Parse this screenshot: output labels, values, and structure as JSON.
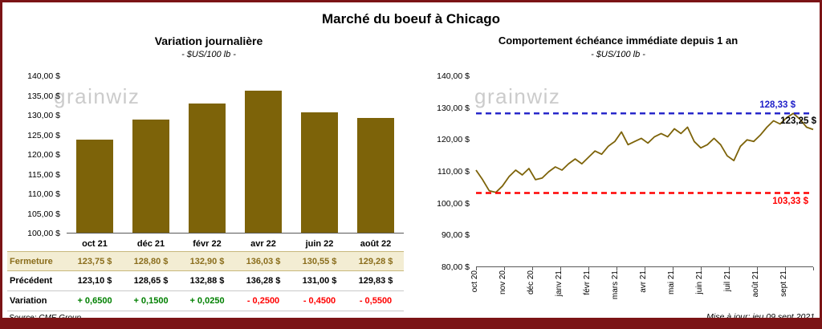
{
  "page": {
    "title": "Marché du boeuf à Chicago",
    "watermark": "grainwiz",
    "source": "Source: CME Group",
    "updated": "Mise à jour: jeu 09 sept 2021"
  },
  "colors": {
    "frame_red": "#7b1416",
    "series_gold": "#7d6309",
    "close_row_bg": "#f3edd3",
    "close_row_text": "#8a6d1c",
    "positive_green": "#008000",
    "negative_red": "#ff0000",
    "high_blue": "#1f1fc8",
    "low_red": "#ff0000",
    "watermark_gray": "#c3c3c3"
  },
  "chart_data": [
    {
      "type": "bar",
      "title": "Variation journalière",
      "subtitle": "- $US/100 lb -",
      "categories": [
        "oct 21",
        "déc 21",
        "févr 22",
        "avr 22",
        "juin 22",
        "août 22"
      ],
      "values": [
        123.75,
        128.8,
        132.9,
        136.03,
        130.55,
        129.28
      ],
      "ylim": [
        100,
        140
      ],
      "ytick_step": 5,
      "ytick_suffix": " $",
      "bar_color": "#7d6309",
      "grid": false,
      "legend": false
    },
    {
      "type": "line",
      "title": "Comportement échéance immédiate depuis 1 an",
      "subtitle": "- $US/100 lb -",
      "x_labels": [
        "oct 20",
        "nov 20",
        "déc 20",
        "janv 21",
        "févr 21",
        "mars 21",
        "avr 21",
        "mai 21",
        "juin 21",
        "juil 21",
        "août 21",
        "sept 21"
      ],
      "ylim": [
        80,
        140
      ],
      "ytick_step": 10,
      "grid": false,
      "legend": false,
      "series": [
        {
          "name": "échéance immédiate",
          "color": "#7d6309",
          "values": [
            110.5,
            107.5,
            104.0,
            103.5,
            105.5,
            108.5,
            110.5,
            109.0,
            111.0,
            107.5,
            108.0,
            110.0,
            111.5,
            110.5,
            112.5,
            114.0,
            112.5,
            114.5,
            116.5,
            115.5,
            118.0,
            119.5,
            122.5,
            118.5,
            119.5,
            120.5,
            119.0,
            121.0,
            122.0,
            121.0,
            123.5,
            122.0,
            124.0,
            119.5,
            117.5,
            118.5,
            120.5,
            118.5,
            115.0,
            113.5,
            118.0,
            120.0,
            119.5,
            121.5,
            124.0,
            126.0,
            125.0,
            127.0,
            128.33,
            126.5,
            124.0,
            123.25
          ]
        }
      ],
      "reference_lines": [
        {
          "value": 128.33,
          "label": "128,33 $",
          "color": "#1f1fc8",
          "style": "dashed"
        },
        {
          "value": 103.33,
          "label": "103,33 $",
          "color": "#ff0000",
          "style": "dashed"
        }
      ],
      "last_point_label": {
        "value": 123.25,
        "label": "123,25 $",
        "color": "#000000"
      }
    }
  ],
  "table": {
    "rows": [
      {
        "label": "Fermeture",
        "values": [
          "123,75  $",
          "128,80  $",
          "132,90  $",
          "136,03  $",
          "130,55  $",
          "129,28  $"
        ],
        "row_style": "close"
      },
      {
        "label": "Précédent",
        "values": [
          "123,10  $",
          "128,65  $",
          "132,88  $",
          "136,28  $",
          "131,00  $",
          "129,83  $"
        ],
        "row_style": "previous"
      },
      {
        "label": "Variation",
        "values": [
          "+ 0,6500",
          "+ 0,1500",
          "+ 0,0250",
          "- 0,2500",
          "- 0,4500",
          "- 0,5500"
        ],
        "value_styles": [
          "pos",
          "pos",
          "pos",
          "neg",
          "neg",
          "neg"
        ],
        "row_style": "variation"
      }
    ]
  }
}
